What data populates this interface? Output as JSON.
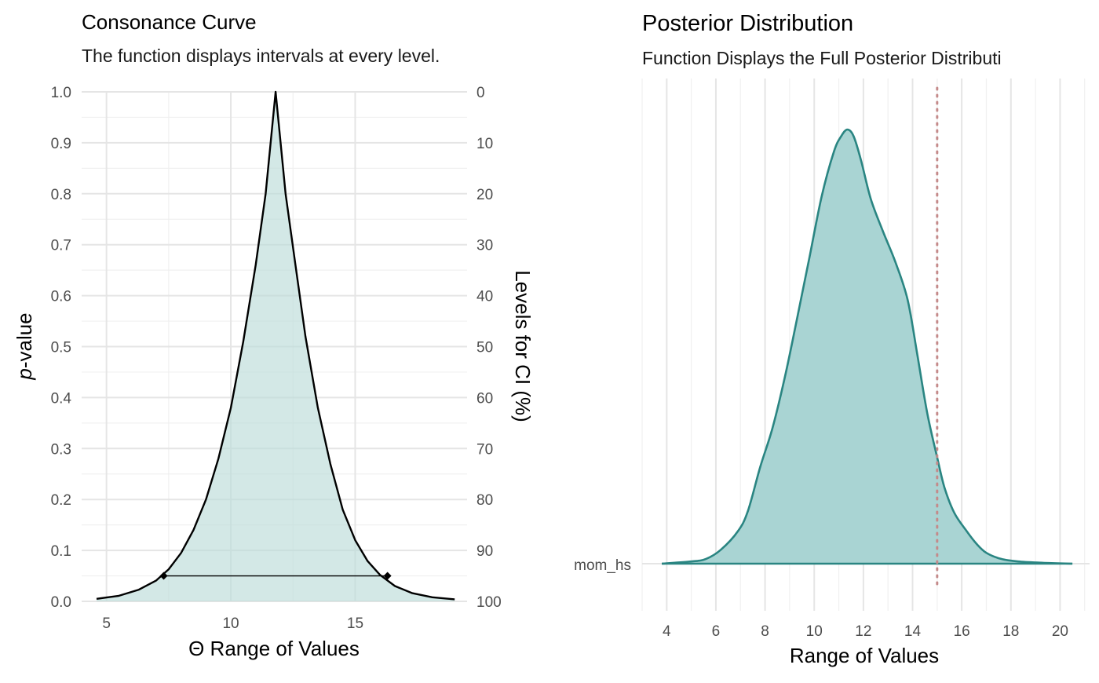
{
  "colors": {
    "consonance_fill": "#bcdbd9",
    "consonance_line": "#000000",
    "posterior_fill": "#a9d4d3",
    "posterior_line": "#2a8582",
    "reference_line": "#c48a8a",
    "grid": "#e5e5e5"
  },
  "chart_data": [
    {
      "type": "area",
      "title": "Consonance Curve",
      "subtitle": "The function displays intervals at every level.",
      "xlabel": "Θ Range of Values",
      "ylabel": "p-value",
      "ylabel_italic_part": "p",
      "ylabel_rest": "-value",
      "y2label": "Levels for CI (%)",
      "xlim": [
        4,
        19.5
      ],
      "ylim": [
        0,
        1
      ],
      "x_ticks": [
        5,
        10,
        15
      ],
      "y_ticks": [
        0.0,
        0.1,
        0.2,
        0.3,
        0.4,
        0.5,
        0.6,
        0.7,
        0.8,
        0.9,
        1.0
      ],
      "y_tick_labels": [
        "0.0",
        "0.1",
        "0.2",
        "0.3",
        "0.4",
        "0.5",
        "0.6",
        "0.7",
        "0.8",
        "0.9",
        "1.0"
      ],
      "y2_tick_labels": [
        "100",
        "90",
        "80",
        "70",
        "60",
        "50",
        "40",
        "30",
        "20",
        "10",
        "0"
      ],
      "grid": true,
      "series": [
        {
          "x": [
            4.6,
            5.5,
            6.3,
            7.0,
            7.5,
            8.0,
            8.5,
            9.0,
            9.5,
            10.0,
            10.5,
            11.0,
            11.4,
            11.8,
            12.2,
            12.6,
            13.0,
            13.5,
            14.0,
            14.5,
            15.0,
            15.5,
            16.0,
            16.6,
            17.3,
            18.1,
            19.0
          ],
          "y": [
            0.005,
            0.011,
            0.023,
            0.041,
            0.063,
            0.095,
            0.14,
            0.2,
            0.28,
            0.38,
            0.51,
            0.66,
            0.8,
            1.0,
            0.8,
            0.66,
            0.52,
            0.38,
            0.27,
            0.18,
            0.12,
            0.079,
            0.052,
            0.03,
            0.016,
            0.008,
            0.004
          ]
        }
      ],
      "interval": {
        "level": 95,
        "p": 0.05,
        "lower": 7.3,
        "upper": 16.3
      }
    },
    {
      "type": "area",
      "title": "Posterior Distribution",
      "subtitle": "Function Displays the Full Posterior Distributi",
      "xlabel": "Range of Values",
      "ylabel": "",
      "xlim": [
        3,
        21.2
      ],
      "x_ticks": [
        4,
        6,
        8,
        10,
        12,
        14,
        16,
        18,
        20
      ],
      "y_category": "mom_hs",
      "reference_x": 15,
      "grid": true,
      "series": [
        {
          "x": [
            3.8,
            5,
            5.6,
            6.2,
            6.9,
            7.3,
            7.8,
            8.3,
            8.8,
            9.3,
            9.8,
            10.3,
            10.8,
            11.1,
            11.35,
            11.6,
            11.9,
            12.3,
            12.8,
            13.3,
            13.8,
            14.2,
            14.6,
            15.0,
            15.3,
            15.7,
            16.2,
            16.6,
            17.0,
            17.6,
            18.3,
            19.3,
            20.5
          ],
          "y": [
            0,
            0.005,
            0.011,
            0.032,
            0.075,
            0.121,
            0.222,
            0.312,
            0.428,
            0.564,
            0.704,
            0.845,
            0.949,
            0.985,
            1.0,
            0.985,
            0.93,
            0.84,
            0.765,
            0.695,
            0.608,
            0.479,
            0.346,
            0.245,
            0.175,
            0.117,
            0.075,
            0.046,
            0.025,
            0.011,
            0.005,
            0.002,
            0
          ]
        }
      ]
    }
  ]
}
